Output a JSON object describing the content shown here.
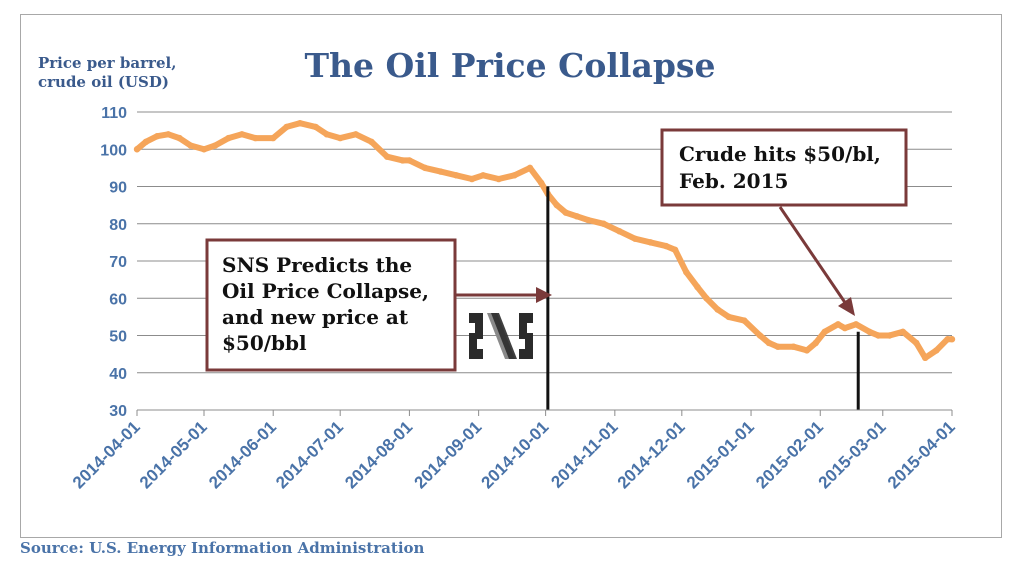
{
  "chart_data": {
    "type": "line",
    "title": "The Oil Price Collapse",
    "ylabel_lines": [
      "Price per barrel,",
      "crude oil (USD)"
    ],
    "xlabel": "",
    "ylim": [
      30,
      110
    ],
    "yticks": [
      30,
      40,
      50,
      60,
      70,
      80,
      90,
      100,
      110
    ],
    "x_range": [
      "2014-04-01",
      "2015-04-01"
    ],
    "xticks": [
      "2014-04-01",
      "2014-05-01",
      "2014-06-01",
      "2014-07-01",
      "2014-08-01",
      "2014-09-01",
      "2014-10-01",
      "2014-11-01",
      "2014-12-01",
      "2015-01-01",
      "2015-02-01",
      "2015-03-01",
      "2015-04-01"
    ],
    "grid": true,
    "line_color": "#f5a55a",
    "series": [
      {
        "x": [
          "2014-04-01",
          "2014-04-05",
          "2014-04-10",
          "2014-04-15",
          "2014-04-20",
          "2014-04-25",
          "2014-05-01",
          "2014-05-06",
          "2014-05-12",
          "2014-05-18",
          "2014-05-24",
          "2014-06-01",
          "2014-06-07",
          "2014-06-13",
          "2014-06-20",
          "2014-06-25",
          "2014-07-01",
          "2014-07-08",
          "2014-07-15",
          "2014-07-22",
          "2014-07-29",
          "2014-08-01",
          "2014-08-08",
          "2014-08-15",
          "2014-08-22",
          "2014-08-29",
          "2014-09-03",
          "2014-09-10",
          "2014-09-17",
          "2014-09-24",
          "2014-09-29",
          "2014-10-02",
          "2014-10-06",
          "2014-10-10",
          "2014-10-15",
          "2014-10-20",
          "2014-10-27",
          "2014-11-03",
          "2014-11-10",
          "2014-11-17",
          "2014-11-24",
          "2014-11-28",
          "2014-12-03",
          "2014-12-08",
          "2014-12-12",
          "2014-12-17",
          "2014-12-22",
          "2014-12-29",
          "2015-01-05",
          "2015-01-09",
          "2015-01-13",
          "2015-01-20",
          "2015-01-26",
          "2015-01-30",
          "2015-02-03",
          "2015-02-09",
          "2015-02-12",
          "2015-02-17",
          "2015-02-23",
          "2015-02-27",
          "2015-03-04",
          "2015-03-10",
          "2015-03-16",
          "2015-03-20",
          "2015-03-25",
          "2015-03-30",
          "2015-04-01"
        ],
        "values": [
          100,
          102,
          103.5,
          104,
          103,
          101,
          100,
          101,
          103,
          104,
          103,
          103,
          106,
          107,
          106,
          104,
          103,
          104,
          102,
          98,
          97,
          97,
          95,
          94,
          93,
          92,
          93,
          92,
          93,
          95,
          91,
          88,
          85,
          83,
          82,
          81,
          80,
          78,
          76,
          75,
          74,
          73,
          67,
          63,
          60,
          57,
          55,
          54,
          50,
          48,
          47,
          47,
          46,
          48,
          51,
          53,
          52,
          53,
          51,
          50,
          50,
          51,
          48,
          44,
          46,
          49,
          49
        ]
      }
    ],
    "annotations": [
      {
        "lines": [
          "SNS Predicts the",
          "Oil Price Collapse,",
          "and new price at",
          "$50/bbl"
        ],
        "points_to": "2014-10-02"
      },
      {
        "lines": [
          "Crude hits $50/bl,",
          "Feb. 2015"
        ],
        "points_to": "2015-02-18"
      }
    ],
    "marker_lines": [
      {
        "x": "2014-10-02",
        "from": 90,
        "to": 30
      },
      {
        "x": "2015-02-18",
        "from": 51,
        "to": 30
      }
    ],
    "logo_text": "SNS",
    "source": "Source: U.S. Energy Information Administration"
  }
}
